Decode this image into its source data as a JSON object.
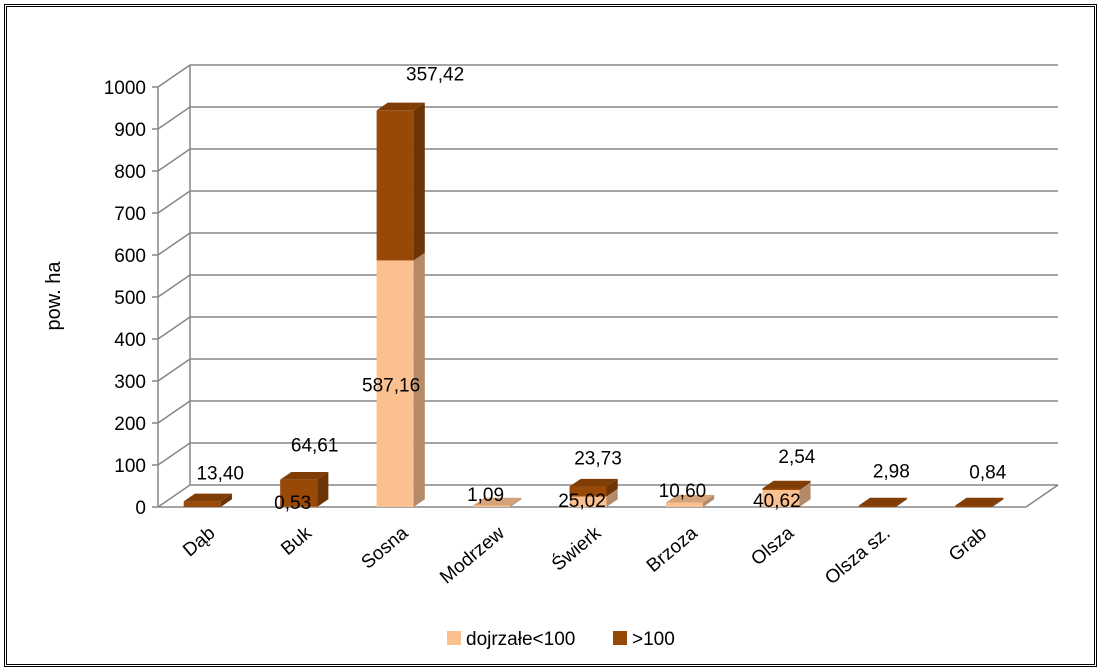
{
  "chart_data": {
    "type": "bar",
    "stacked": true,
    "three_d": true,
    "title": "",
    "xlabel": "",
    "ylabel": "pow. ha",
    "ylim": [
      0,
      1000
    ],
    "yticks": [
      "0",
      "100",
      "200",
      "300",
      "400",
      "500",
      "600",
      "700",
      "800",
      "900",
      "1000"
    ],
    "categories": [
      "Dąb",
      "Buk",
      "Sosna",
      "Modrzew",
      "Świerk",
      "Brzoza",
      "Olsza",
      "Olsza sz.",
      "Grab"
    ],
    "series": [
      {
        "name": "dojrzałe<100",
        "color": "#FAC090",
        "values": [
          0,
          0.53,
          587.16,
          1.09,
          25.02,
          10.6,
          40.62,
          0,
          0
        ],
        "labels": [
          "",
          "0,53",
          "587,16",
          "1,09",
          "25,02",
          "10,60",
          "40,62",
          "",
          ""
        ]
      },
      {
        "name": ">100",
        "color": "#984807",
        "values": [
          13.4,
          64.61,
          357.42,
          0,
          23.73,
          0,
          2.54,
          2.98,
          0.84
        ],
        "labels": [
          "13,40",
          "64,61",
          "357,42",
          "",
          "23,73",
          "",
          "2,54",
          "2,98",
          "0,84"
        ]
      }
    ],
    "grid": true,
    "legend_position": "bottom"
  }
}
